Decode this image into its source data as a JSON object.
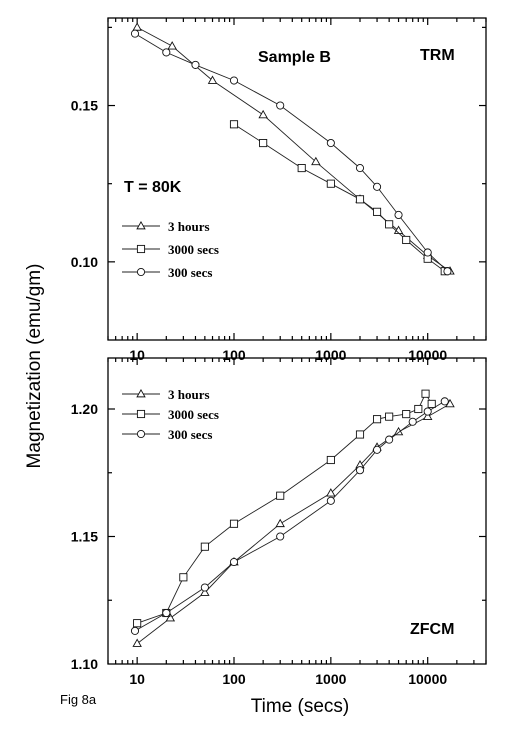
{
  "figure_label": "Fig 8a",
  "y_axis_title": "Magnetization (emu/gm)",
  "x_axis_title": "Time (secs)",
  "chart_data": [
    {
      "type": "scatter",
      "panel": "top",
      "xscale": "log",
      "xlim": [
        5,
        40000
      ],
      "ylim": [
        0.075,
        0.178
      ],
      "xticks": [
        10,
        100,
        1000,
        10000
      ],
      "xtick_labels": [
        "10",
        "100",
        "1000",
        "10000"
      ],
      "yticks": [
        0.1,
        0.15
      ],
      "ytick_labels": [
        "0.10",
        "0.15"
      ],
      "annotations": [
        "Sample B",
        "TRM",
        "T = 80K"
      ],
      "legend_position": "middle-left",
      "series": [
        {
          "name": "3 hours",
          "marker": "triangle",
          "x": [
            10,
            23,
            60,
            200,
            700,
            2000,
            5000,
            10000,
            17000
          ],
          "y": [
            0.175,
            0.169,
            0.158,
            0.147,
            0.132,
            0.12,
            0.11,
            0.102,
            0.097
          ]
        },
        {
          "name": "3000 secs",
          "marker": "square",
          "x": [
            100,
            200,
            500,
            1000,
            2000,
            3000,
            4000,
            6000,
            10000,
            15000
          ],
          "y": [
            0.144,
            0.138,
            0.13,
            0.125,
            0.12,
            0.116,
            0.112,
            0.107,
            0.101,
            0.097
          ]
        },
        {
          "name": "300 secs",
          "marker": "circle",
          "x": [
            9.5,
            20,
            40,
            100,
            300,
            1000,
            2000,
            3000,
            5000,
            10000,
            16000
          ],
          "y": [
            0.173,
            0.167,
            0.163,
            0.158,
            0.15,
            0.138,
            0.13,
            0.124,
            0.115,
            0.103,
            0.097
          ]
        }
      ]
    },
    {
      "type": "scatter",
      "panel": "bottom",
      "xscale": "log",
      "xlim": [
        5,
        40000
      ],
      "ylim": [
        1.1,
        1.22
      ],
      "xticks": [
        10,
        100,
        1000,
        10000
      ],
      "xtick_labels": [
        "10",
        "100",
        "1000",
        "10000"
      ],
      "yticks": [
        1.1,
        1.15,
        1.2
      ],
      "ytick_labels": [
        "1.10",
        "1.15",
        "1.20"
      ],
      "annotations": [
        "ZFCM"
      ],
      "legend_position": "top-left",
      "series": [
        {
          "name": "3 hours",
          "marker": "triangle",
          "x": [
            10,
            22,
            50,
            100,
            300,
            1000,
            2000,
            3000,
            5000,
            10000,
            17000
          ],
          "y": [
            1.108,
            1.118,
            1.128,
            1.14,
            1.155,
            1.167,
            1.178,
            1.185,
            1.191,
            1.197,
            1.202
          ]
        },
        {
          "name": "3000 secs",
          "marker": "square",
          "x": [
            10,
            20,
            30,
            50,
            100,
            300,
            1000,
            2000,
            3000,
            4000,
            6000,
            8000,
            9500,
            11000
          ],
          "y": [
            1.116,
            1.12,
            1.134,
            1.146,
            1.155,
            1.166,
            1.18,
            1.19,
            1.196,
            1.197,
            1.198,
            1.2,
            1.206,
            1.202
          ]
        },
        {
          "name": "300 secs",
          "marker": "circle",
          "x": [
            9.5,
            20,
            50,
            100,
            300,
            1000,
            2000,
            3000,
            4000,
            7000,
            10000,
            15000
          ],
          "y": [
            1.113,
            1.12,
            1.13,
            1.14,
            1.15,
            1.164,
            1.176,
            1.184,
            1.188,
            1.195,
            1.199,
            1.203
          ]
        }
      ]
    }
  ]
}
